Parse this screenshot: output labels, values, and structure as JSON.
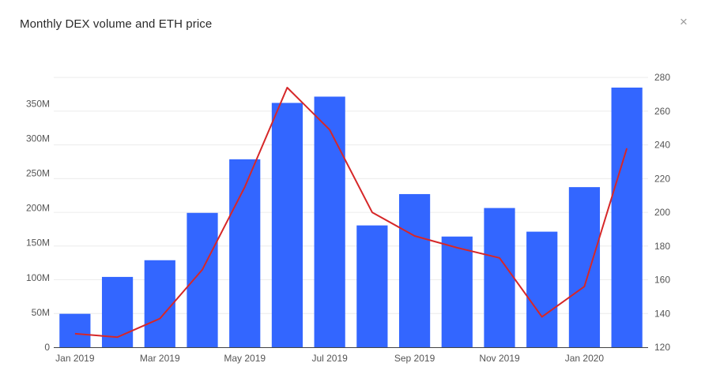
{
  "header": {
    "title": "Monthly DEX volume and ETH price",
    "close_glyph": "×"
  },
  "chart_data": {
    "type": "bar",
    "title": "Monthly DEX volume and ETH price",
    "categories": [
      "Jan 2019",
      "Feb 2019",
      "Mar 2019",
      "Apr 2019",
      "May 2019",
      "Jun 2019",
      "Jul 2019",
      "Aug 2019",
      "Sep 2019",
      "Oct 2019",
      "Nov 2019",
      "Dec 2019",
      "Jan 2020",
      "Feb 2020"
    ],
    "x_tick_labels": [
      "Jan 2019",
      "Mar 2019",
      "May 2019",
      "Jul 2019",
      "Sep 2019",
      "Nov 2019",
      "Jan 2020"
    ],
    "series": [
      {
        "type": "bar",
        "axis": "left",
        "color": "#3366ff",
        "values": [
          48000000,
          101000000,
          125000000,
          193000000,
          270000000,
          351000000,
          360000000,
          175000000,
          220000000,
          159000000,
          200000000,
          166000000,
          230000000,
          373000000
        ]
      },
      {
        "type": "line",
        "axis": "right",
        "color": "#d62728",
        "values": [
          128,
          126,
          137,
          166,
          215,
          274,
          249,
          200,
          186,
          179,
          173,
          138,
          156,
          238
        ]
      }
    ],
    "y_left": {
      "range": [
        0,
        390000000
      ],
      "ticks": [
        0,
        50000000,
        100000000,
        150000000,
        200000000,
        250000000,
        300000000,
        350000000
      ],
      "tick_labels": [
        "0",
        "50M",
        "100M",
        "150M",
        "200M",
        "250M",
        "300M",
        "350M"
      ]
    },
    "y_right": {
      "range": [
        120,
        281
      ],
      "ticks": [
        120,
        140,
        160,
        180,
        200,
        220,
        240,
        260,
        280
      ],
      "tick_labels": [
        "120",
        "140",
        "160",
        "180",
        "200",
        "220",
        "240",
        "260",
        "280"
      ]
    },
    "grid": true,
    "legend": "none"
  }
}
